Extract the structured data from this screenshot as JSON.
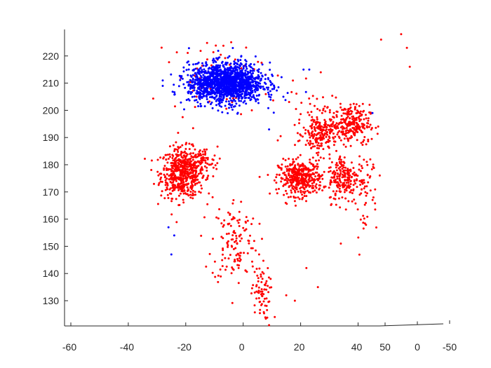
{
  "chart_data": {
    "type": "scatter",
    "view": "3d",
    "title": "",
    "xlabel": "",
    "ylabel": "",
    "zlabel": "",
    "xlim": [
      -62,
      50
    ],
    "ylim": [
      -50,
      50
    ],
    "zlim": [
      121,
      230
    ],
    "x_ticks": [
      -60,
      -40,
      -20,
      0,
      20,
      40
    ],
    "y_ticks": [
      50,
      0,
      -50
    ],
    "z_ticks": [
      130,
      140,
      150,
      160,
      170,
      180,
      190,
      200,
      210,
      220
    ],
    "grid": false,
    "legend": "none",
    "marker_size": 2,
    "clusters": [
      {
        "color": "#ff0000",
        "x": -21,
        "z": 177,
        "sx": 3.8,
        "sz": 4.5,
        "n": 560
      },
      {
        "color": "#ff0000",
        "x": -14,
        "z": 181,
        "sx": 2.5,
        "sz": 2.8,
        "n": 60
      },
      {
        "color": "#ff0000",
        "x": -3,
        "z": 152,
        "sx": 4,
        "sz": 8,
        "n": 130
      },
      {
        "color": "#ff0000",
        "x": 6,
        "z": 133,
        "sx": 1.6,
        "sz": 5,
        "n": 70
      },
      {
        "color": "#ff0000",
        "x": 20,
        "z": 175,
        "sx": 3.8,
        "sz": 3.2,
        "n": 400
      },
      {
        "color": "#ff0000",
        "x": 27,
        "z": 191,
        "sx": 2.8,
        "sz": 3.5,
        "n": 150
      },
      {
        "color": "#ff0000",
        "x": 24,
        "z": 196,
        "sx": 4.5,
        "sz": 6,
        "n": 70
      },
      {
        "color": "#ff0000",
        "x": 37,
        "z": 195,
        "sx": 3.5,
        "sz": 3.5,
        "n": 240
      },
      {
        "color": "#ff0000",
        "x": 35,
        "z": 175,
        "sx": 2.6,
        "sz": 4.5,
        "n": 190
      },
      {
        "color": "#ff0000",
        "x": 42,
        "z": 174,
        "sx": 2.5,
        "sz": 10,
        "n": 70
      },
      {
        "color": "#ff0000",
        "x": -9,
        "z": 213,
        "sx": 8,
        "sz": 6.5,
        "n": 70
      },
      {
        "color": "#0000ff",
        "x": -6,
        "z": 210,
        "sx": 6.5,
        "sz": 3.6,
        "n": 1500
      }
    ],
    "outliers": {
      "red": [
        [
          48,
          226
        ],
        [
          55,
          228
        ],
        [
          57,
          223
        ],
        [
          58,
          216
        ],
        [
          22,
          142
        ],
        [
          26,
          135
        ],
        [
          18,
          130
        ],
        [
          15,
          132
        ],
        [
          11,
          124
        ],
        [
          9,
          121
        ],
        [
          34,
          151
        ],
        [
          3,
          200
        ],
        [
          27,
          214
        ]
      ],
      "blue": [
        [
          -28,
          211
        ],
        [
          -26,
          157
        ],
        [
          -24,
          154
        ],
        [
          -25,
          147
        ],
        [
          14,
          205
        ],
        [
          23,
          215
        ],
        [
          21,
          215
        ],
        [
          9,
          193
        ],
        [
          45,
          199
        ],
        [
          -28,
          209
        ]
      ]
    }
  }
}
